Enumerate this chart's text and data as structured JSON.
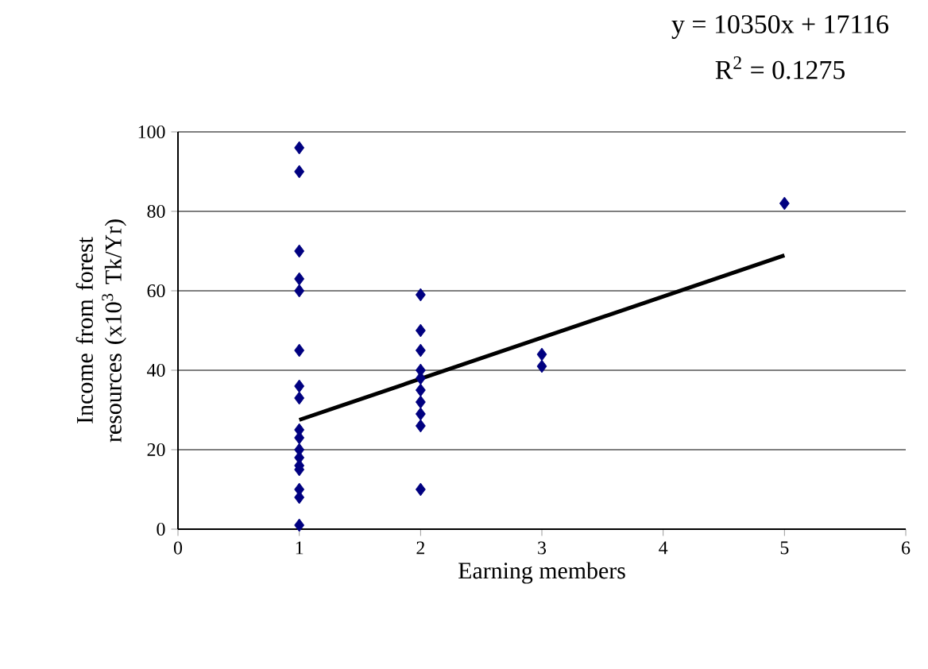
{
  "chart_data": {
    "type": "scatter",
    "xlabel": "Earning members",
    "ylabel": "Income from forest resources (x10$^{3}$ Tk/Yr)",
    "annotations": [
      "y = 10350x + 17116",
      "R$^{2}$ = 0.1275"
    ],
    "series": [
      {
        "color": "#000080",
        "marker": "diamond",
        "x": [
          1,
          1,
          1,
          1,
          1,
          1,
          1,
          1,
          1,
          1,
          1,
          1,
          1,
          1,
          1,
          1,
          1,
          2,
          2,
          2,
          2,
          2,
          2,
          2,
          2,
          2,
          2,
          3,
          3,
          5
        ],
        "values": [
          96,
          90,
          70,
          63,
          60,
          45,
          36,
          33,
          25,
          23,
          20,
          18,
          16,
          15,
          10,
          8,
          1,
          59,
          50,
          45,
          40,
          38,
          35,
          32,
          29,
          26,
          10,
          44,
          41,
          82
        ]
      },
      {
        "type": "line",
        "color": "#000000",
        "marker": "none",
        "x": [
          1,
          5
        ],
        "values": [
          27.5,
          68.9
        ]
      }
    ],
    "xlim": [
      0,
      6
    ],
    "xticks": [
      0,
      1,
      2,
      3,
      4,
      5,
      6
    ],
    "ylim": [
      0,
      100
    ],
    "yticks": [
      0,
      20,
      40,
      60,
      80,
      100
    ],
    "grid": "y"
  }
}
